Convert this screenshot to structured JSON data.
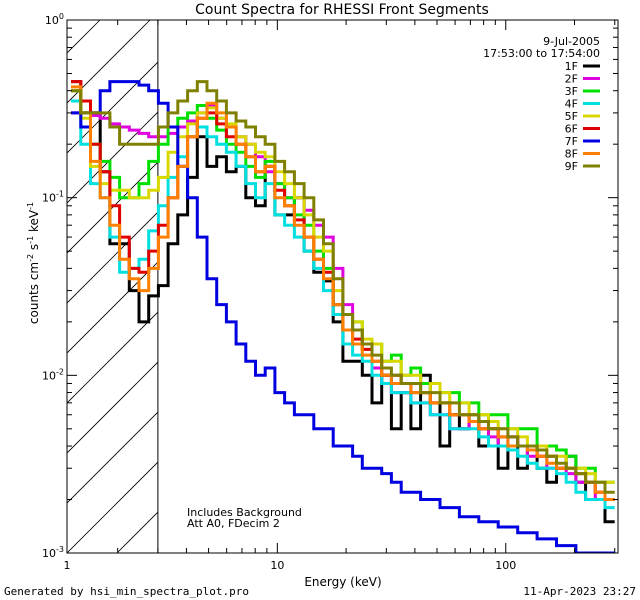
{
  "chart_data": {
    "type": "line",
    "title": "Count Spectra for RHESSI Front Segments",
    "xlabel": "Energy (keV)",
    "ylabel": "counts cm",
    "ylabel_parts": [
      "counts cm",
      "-2",
      " s",
      "-1",
      " keV",
      "-1"
    ],
    "xscale": "log",
    "yscale": "log",
    "xlim": [
      1.2,
      310
    ],
    "ylim": [
      0.001,
      1.0
    ],
    "x_ticks": [
      {
        "value": 10,
        "label": "10"
      },
      {
        "value": 100,
        "label": "100"
      }
    ],
    "y_ticks": [
      {
        "value": 0.001,
        "base": "10",
        "exp": "-3"
      },
      {
        "value": 0.01,
        "base": "10",
        "exp": "-2"
      },
      {
        "value": 0.1,
        "base": "10",
        "exp": "-1"
      },
      {
        "value": 1.0,
        "base": "10",
        "exp": "0"
      }
    ],
    "attenuator_region_max_keV": 3.0,
    "date": "9-Jul-2005",
    "time_range": "17:53:00 to 17:54:00",
    "annotations": [
      "Includes Background",
      "Att A0, FDecim 2"
    ],
    "series": [
      {
        "name": "1F",
        "color": "#000000",
        "values": [
          0.45,
          0.3,
          0.3,
          0.14,
          0.055,
          0.055,
          0.03,
          0.02,
          0.028,
          0.032,
          0.055,
          0.08,
          0.13,
          0.22,
          0.15,
          0.17,
          0.14,
          0.15,
          0.1,
          0.09,
          0.15,
          0.08,
          0.08,
          0.1,
          0.05,
          0.038,
          0.034,
          0.02,
          0.012,
          0.012,
          0.01,
          0.007,
          0.01,
          0.005,
          0.008,
          0.005,
          0.01,
          0.007,
          0.004,
          0.006,
          0.005,
          0.006,
          0.004,
          0.005,
          0.003,
          0.004,
          0.003,
          0.004,
          0.003,
          0.0025,
          0.003,
          0.0035,
          0.0025,
          0.002,
          0.002,
          0.0015
        ]
      },
      {
        "name": "2F",
        "color": "#e000e0",
        "values": [
          0.3,
          0.3,
          0.29,
          0.28,
          0.26,
          0.25,
          0.24,
          0.23,
          0.22,
          0.22,
          0.23,
          0.25,
          0.27,
          0.3,
          0.33,
          0.28,
          0.25,
          0.22,
          0.2,
          0.17,
          0.14,
          0.12,
          0.1,
          0.1,
          0.085,
          0.07,
          0.06,
          0.04,
          0.025,
          0.018,
          0.015,
          0.011,
          0.009,
          0.008,
          0.008,
          0.007,
          0.007,
          0.006,
          0.006,
          0.005,
          0.005,
          0.0055,
          0.005,
          0.0045,
          0.004,
          0.0045,
          0.004,
          0.0035,
          0.0035,
          0.003,
          0.003,
          0.0028,
          0.0025,
          0.0025,
          0.002,
          0.002
        ]
      },
      {
        "name": "3F",
        "color": "#00e000",
        "values": [
          0.4,
          0.3,
          0.2,
          0.16,
          0.13,
          0.1,
          0.1,
          0.12,
          0.16,
          0.2,
          0.25,
          0.28,
          0.3,
          0.33,
          0.28,
          0.24,
          0.2,
          0.18,
          0.15,
          0.13,
          0.16,
          0.12,
          0.1,
          0.08,
          0.07,
          0.05,
          0.04,
          0.025,
          0.018,
          0.02,
          0.014,
          0.015,
          0.012,
          0.013,
          0.01,
          0.011,
          0.009,
          0.009,
          0.008,
          0.008,
          0.007,
          0.007,
          0.006,
          0.006,
          0.006,
          0.005,
          0.005,
          0.005,
          0.004,
          0.004,
          0.0038,
          0.0035,
          0.003,
          0.003,
          0.0025,
          0.0025
        ]
      },
      {
        "name": "4F",
        "color": "#00e0e0",
        "values": [
          0.35,
          0.2,
          0.12,
          0.1,
          0.06,
          0.038,
          0.04,
          0.045,
          0.065,
          0.09,
          0.13,
          0.17,
          0.22,
          0.25,
          0.22,
          0.2,
          0.18,
          0.15,
          0.12,
          0.1,
          0.12,
          0.08,
          0.07,
          0.06,
          0.05,
          0.04,
          0.03,
          0.022,
          0.015,
          0.013,
          0.012,
          0.01,
          0.009,
          0.008,
          0.008,
          0.007,
          0.007,
          0.006,
          0.006,
          0.005,
          0.005,
          0.005,
          0.0045,
          0.004,
          0.004,
          0.0038,
          0.0035,
          0.0032,
          0.003,
          0.003,
          0.0028,
          0.0025,
          0.0022,
          0.002,
          0.002,
          0.0018
        ]
      },
      {
        "name": "5F",
        "color": "#d8d800",
        "values": [
          0.4,
          0.28,
          0.15,
          0.12,
          0.11,
          0.11,
          0.1,
          0.1,
          0.11,
          0.13,
          0.18,
          0.22,
          0.26,
          0.3,
          0.32,
          0.28,
          0.26,
          0.22,
          0.2,
          0.18,
          0.17,
          0.14,
          0.12,
          0.1,
          0.08,
          0.06,
          0.05,
          0.03,
          0.022,
          0.02,
          0.016,
          0.015,
          0.012,
          0.012,
          0.01,
          0.01,
          0.008,
          0.009,
          0.008,
          0.007,
          0.007,
          0.006,
          0.006,
          0.0055,
          0.005,
          0.005,
          0.0045,
          0.004,
          0.004,
          0.0035,
          0.0035,
          0.003,
          0.003,
          0.0028,
          0.0025,
          0.0025
        ]
      },
      {
        "name": "6F",
        "color": "#e00000",
        "values": [
          0.45,
          0.35,
          0.2,
          0.14,
          0.09,
          0.06,
          0.04,
          0.038,
          0.05,
          0.07,
          0.1,
          0.15,
          0.22,
          0.28,
          0.3,
          0.26,
          0.22,
          0.2,
          0.17,
          0.14,
          0.15,
          0.11,
          0.09,
          0.075,
          0.06,
          0.045,
          0.038,
          0.025,
          0.018,
          0.016,
          0.014,
          0.012,
          0.01,
          0.01,
          0.009,
          0.008,
          0.008,
          0.007,
          0.007,
          0.006,
          0.006,
          0.0055,
          0.005,
          0.005,
          0.0045,
          0.0045,
          0.004,
          0.004,
          0.0035,
          0.0035,
          0.003,
          0.003,
          0.0028,
          0.0025,
          0.0022,
          0.002
        ]
      },
      {
        "name": "7F",
        "color": "#0000e0",
        "values": [
          0.3,
          0.25,
          0.3,
          0.4,
          0.45,
          0.45,
          0.45,
          0.43,
          0.4,
          0.34,
          0.25,
          0.15,
          0.1,
          0.06,
          0.035,
          0.025,
          0.02,
          0.015,
          0.012,
          0.01,
          0.011,
          0.008,
          0.007,
          0.006,
          0.006,
          0.005,
          0.005,
          0.004,
          0.004,
          0.0035,
          0.003,
          0.003,
          0.0028,
          0.0025,
          0.0022,
          0.0022,
          0.002,
          0.002,
          0.0018,
          0.0018,
          0.0016,
          0.0016,
          0.0015,
          0.0015,
          0.0014,
          0.0014,
          0.0013,
          0.0013,
          0.0012,
          0.0012,
          0.0011,
          0.0011,
          0.001,
          0.001,
          0.001,
          0.001
        ]
      },
      {
        "name": "8F",
        "color": "#ff8000",
        "values": [
          0.42,
          0.3,
          0.16,
          0.1,
          0.07,
          0.045,
          0.035,
          0.03,
          0.04,
          0.06,
          0.1,
          0.15,
          0.22,
          0.28,
          0.34,
          0.3,
          0.25,
          0.2,
          0.17,
          0.14,
          0.15,
          0.1,
          0.09,
          0.07,
          0.06,
          0.045,
          0.035,
          0.025,
          0.018,
          0.015,
          0.013,
          0.012,
          0.01,
          0.009,
          0.009,
          0.008,
          0.008,
          0.007,
          0.007,
          0.006,
          0.006,
          0.0055,
          0.005,
          0.005,
          0.0045,
          0.004,
          0.004,
          0.0038,
          0.0035,
          0.0032,
          0.003,
          0.003,
          0.0028,
          0.0025,
          0.0022,
          0.002
        ]
      },
      {
        "name": "9F",
        "color": "#808000",
        "values": [
          0.4,
          0.3,
          0.3,
          0.3,
          0.25,
          0.2,
          0.2,
          0.2,
          0.2,
          0.25,
          0.3,
          0.35,
          0.4,
          0.45,
          0.4,
          0.35,
          0.3,
          0.27,
          0.25,
          0.22,
          0.2,
          0.16,
          0.14,
          0.12,
          0.1,
          0.075,
          0.055,
          0.035,
          0.022,
          0.018,
          0.015,
          0.013,
          0.011,
          0.01,
          0.009,
          0.009,
          0.008,
          0.008,
          0.007,
          0.007,
          0.006,
          0.006,
          0.0055,
          0.005,
          0.005,
          0.0045,
          0.004,
          0.004,
          0.0038,
          0.0035,
          0.0032,
          0.003,
          0.0028,
          0.0025,
          0.0025,
          0.0022
        ]
      }
    ]
  },
  "footer": {
    "left": "Generated by hsi_min_spectra_plot.pro",
    "right": "11-Apr-2023 23:27"
  }
}
